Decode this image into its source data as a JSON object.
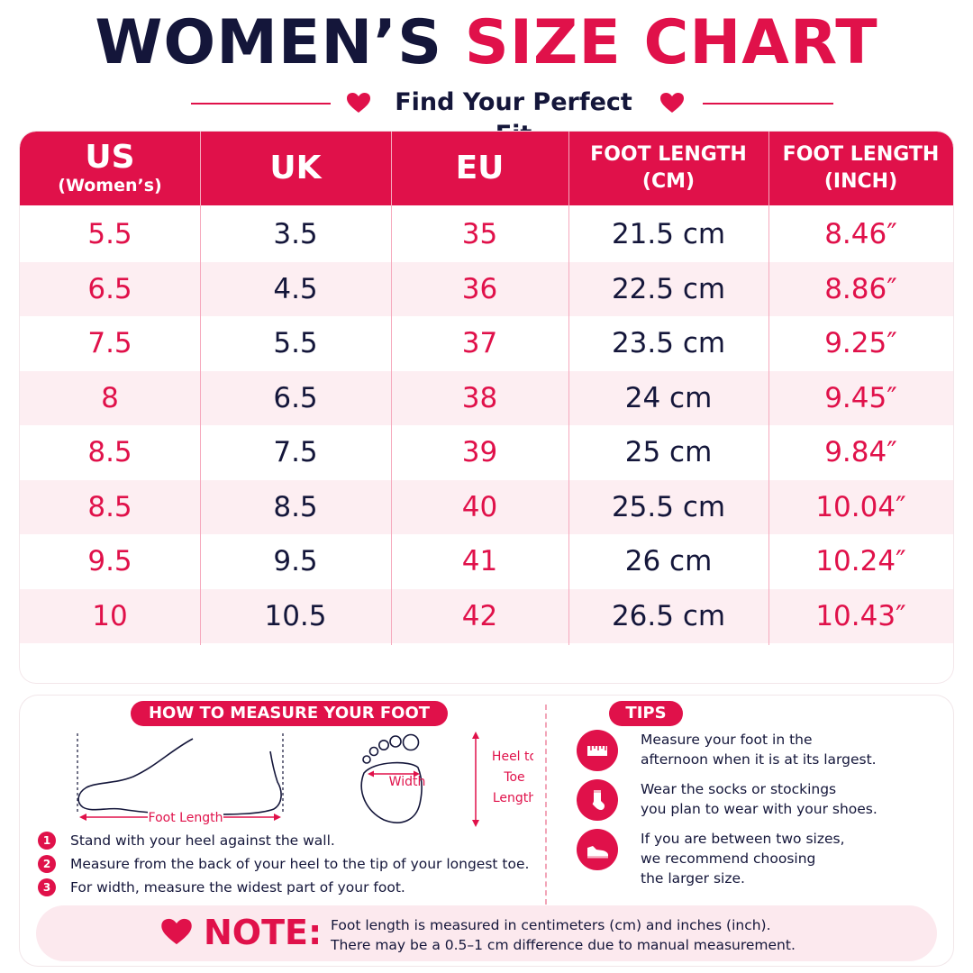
{
  "header": {
    "title_part1": "WOMEN’S",
    "title_part2": "SIZE CHART",
    "subtitle": "Find Your Perfect Fit"
  },
  "colors": {
    "accent": "#e0114a",
    "navy": "#14163a",
    "alt_row": "#fdeef2"
  },
  "table": {
    "headers": [
      {
        "line1": "US",
        "line2": "(Women’s)"
      },
      {
        "line1": "UK",
        "line2": ""
      },
      {
        "line1": "EU",
        "line2": ""
      },
      {
        "line1": "FOOT LENGTH",
        "line2": "(CM)"
      },
      {
        "line1": "FOOT LENGTH",
        "line2": "(INCH)"
      }
    ],
    "rows": [
      [
        "5.5",
        "3.5",
        "35",
        "21.5 cm",
        "8.46″"
      ],
      [
        "6.5",
        "4.5",
        "36",
        "22.5 cm",
        "8.86″"
      ],
      [
        "7.5",
        "5.5",
        "37",
        "23.5 cm",
        "9.25″"
      ],
      [
        "8",
        "6.5",
        "38",
        "24 cm",
        "9.45″"
      ],
      [
        "8.5",
        "7.5",
        "39",
        "25 cm",
        "9.84″"
      ],
      [
        "8.5",
        "8.5",
        "40",
        "25.5 cm",
        "10.04″"
      ],
      [
        "9.5",
        "9.5",
        "41",
        "26 cm",
        "10.24″"
      ],
      [
        "10",
        "10.5",
        "42",
        "26.5 cm",
        "10.43″"
      ]
    ]
  },
  "measure": {
    "title": "HOW TO MEASURE YOUR FOOT",
    "foot_length_label": "Foot Length",
    "width_label": "Width",
    "heel_to_toe_label": [
      "Heel to",
      "Toe",
      "Length"
    ],
    "steps": [
      {
        "num": "1",
        "text": "Stand with your heel against the wall."
      },
      {
        "num": "2",
        "text": "Measure from the back of your heel to the tip of your longest toe."
      },
      {
        "num": "3",
        "text": "For width, measure the widest part of your foot."
      }
    ]
  },
  "tips": {
    "title": "TIPS",
    "items": [
      {
        "icon": "ruler-icon",
        "line1": "Measure your foot in the",
        "line2": "afternoon when it is at its largest."
      },
      {
        "icon": "sock-icon",
        "line1": "Wear the socks or stockings",
        "line2": "you plan to wear with your shoes."
      },
      {
        "icon": "shoe-icon",
        "line1": "If you are between two sizes,",
        "line2": "we recommend choosing",
        "line3": "the larger size."
      }
    ]
  },
  "note": {
    "label": "NOTE:",
    "line1": "Foot length is measured in centimeters (cm) and inches (inch).",
    "line2": "There may be a 0.5–1 cm difference due to manual measurement."
  }
}
